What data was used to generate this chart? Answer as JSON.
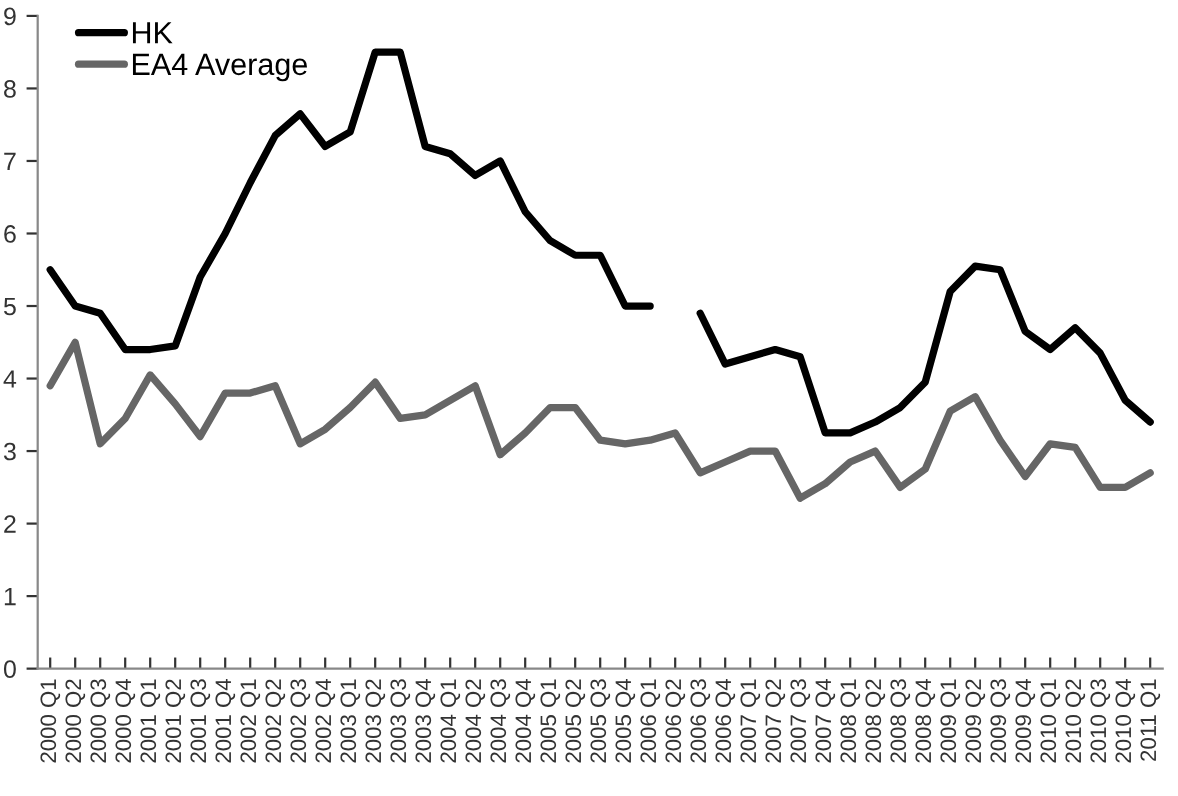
{
  "chart_data": {
    "type": "line",
    "categories": [
      "2000 Q1",
      "2000 Q2",
      "2000 Q3",
      "2000 Q4",
      "2001 Q1",
      "2001 Q2",
      "2001 Q3",
      "2001 Q4",
      "2002 Q1",
      "2002 Q2",
      "2002 Q3",
      "2002 Q4",
      "2003 Q1",
      "2003 Q2",
      "2003 Q3",
      "2003 Q4",
      "2004 Q1",
      "2004 Q2",
      "2004 Q3",
      "2004 Q4",
      "2005 Q1",
      "2005 Q2",
      "2005 Q3",
      "2005 Q4",
      "2006 Q1",
      "2006 Q2",
      "2006 Q3",
      "2006 Q4",
      "2007 Q1",
      "2007 Q2",
      "2007 Q3",
      "2007 Q4",
      "2008 Q1",
      "2008 Q2",
      "2008 Q3",
      "2008 Q4",
      "2009 Q1",
      "2009 Q2",
      "2009 Q3",
      "2009 Q4",
      "2010 Q1",
      "2010 Q2",
      "2010 Q3",
      "2010 Q4",
      "2011 Q1"
    ],
    "series": [
      {
        "name": "HK",
        "color": "#000000",
        "values": [
          5.5,
          5.0,
          4.9,
          4.4,
          4.4,
          4.45,
          5.4,
          6.0,
          6.7,
          7.35,
          7.65,
          7.2,
          7.4,
          8.5,
          8.5,
          7.2,
          7.1,
          6.8,
          7.0,
          6.3,
          5.9,
          5.7,
          5.7,
          5.0,
          5.0,
          null,
          4.9,
          4.2,
          4.3,
          4.4,
          4.3,
          3.25,
          3.25,
          3.4,
          3.6,
          3.95,
          5.2,
          5.55,
          5.5,
          4.65,
          4.4,
          4.7,
          4.35,
          3.7,
          3.4
        ]
      },
      {
        "name": "EA4 Average",
        "color": "#666666",
        "values": [
          3.9,
          4.5,
          3.1,
          3.45,
          4.05,
          3.65,
          3.2,
          3.8,
          3.8,
          3.9,
          3.1,
          3.3,
          3.6,
          3.95,
          3.45,
          3.5,
          3.7,
          3.9,
          2.95,
          3.25,
          3.6,
          3.6,
          3.15,
          3.1,
          3.15,
          3.25,
          2.7,
          2.85,
          3.0,
          3.0,
          2.35,
          2.55,
          2.85,
          3.0,
          2.5,
          2.75,
          3.55,
          3.75,
          3.15,
          2.65,
          3.1,
          3.05,
          2.5,
          2.5,
          2.7
        ]
      }
    ],
    "ylim": [
      0,
      9
    ],
    "yticks": [
      0,
      1,
      2,
      3,
      4,
      5,
      6,
      7,
      8,
      9
    ],
    "grid": false,
    "legend": "top left",
    "marker": "none",
    "line_style": "solid"
  }
}
